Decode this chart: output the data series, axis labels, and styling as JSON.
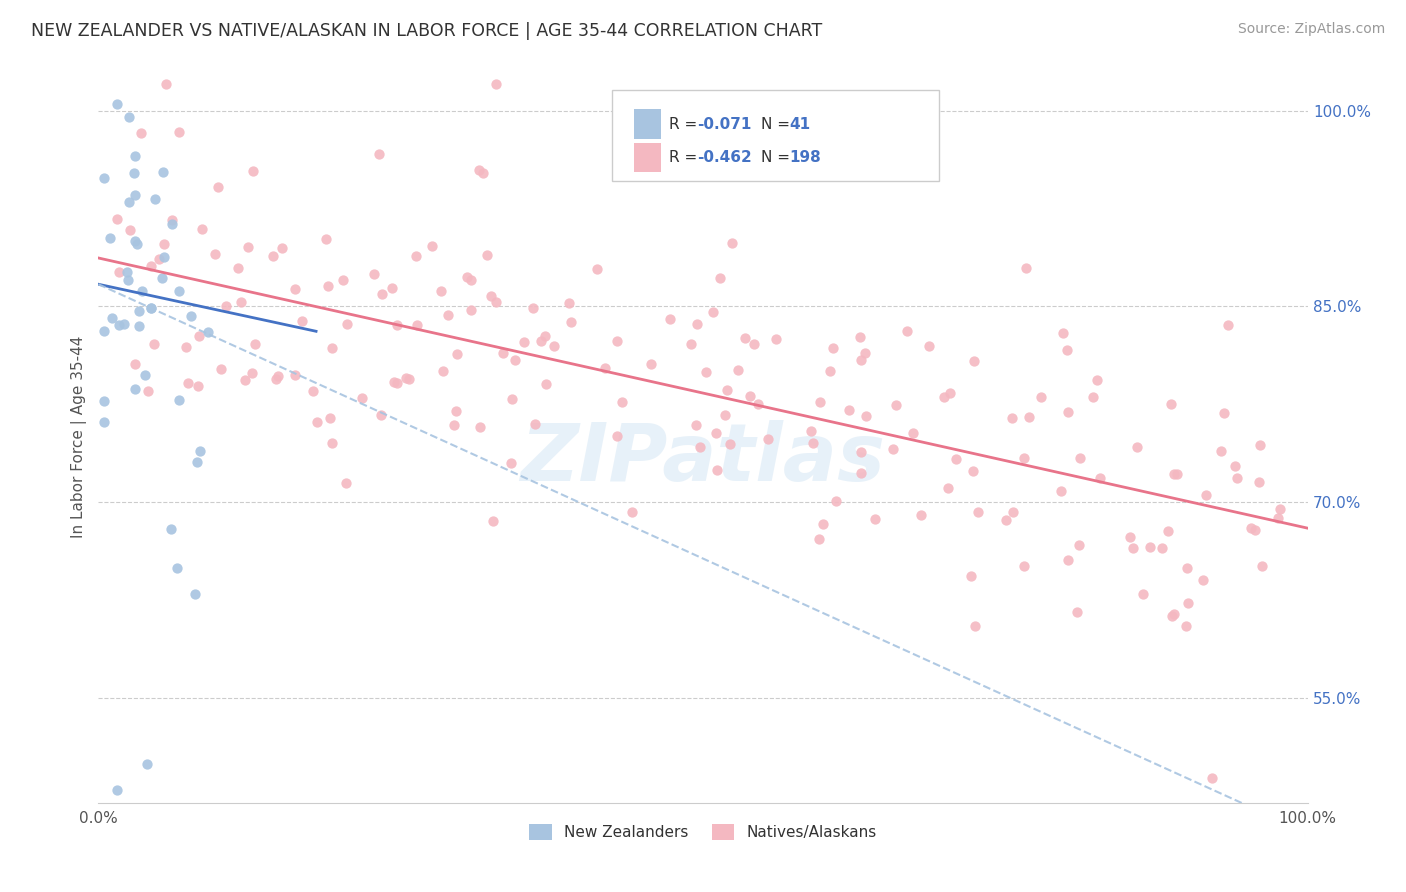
{
  "title": "NEW ZEALANDER VS NATIVE/ALASKAN IN LABOR FORCE | AGE 35-44 CORRELATION CHART",
  "source": "Source: ZipAtlas.com",
  "ylabel": "In Labor Force | Age 35-44",
  "xlim": [
    0.0,
    1.0
  ],
  "ylim": [
    0.47,
    1.03
  ],
  "x_tick_labels": [
    "0.0%",
    "100.0%"
  ],
  "x_ticks": [
    0.0,
    1.0
  ],
  "y_tick_labels_right": [
    "55.0%",
    "70.0%",
    "85.0%",
    "100.0%"
  ],
  "y_ticks_right": [
    0.55,
    0.7,
    0.85,
    1.0
  ],
  "r_nz": -0.071,
  "n_nz": 41,
  "r_na": -0.462,
  "n_na": 198,
  "color_nz": "#a8c4e0",
  "color_na": "#f4b8c1",
  "line_color_nz": "#4472c4",
  "line_color_na": "#e8748a",
  "line_color_nz_dashed": "#a8c4e0",
  "watermark": "ZIPatlas",
  "legend_label_nz": "New Zealanders",
  "legend_label_na": "Natives/Alaskans"
}
